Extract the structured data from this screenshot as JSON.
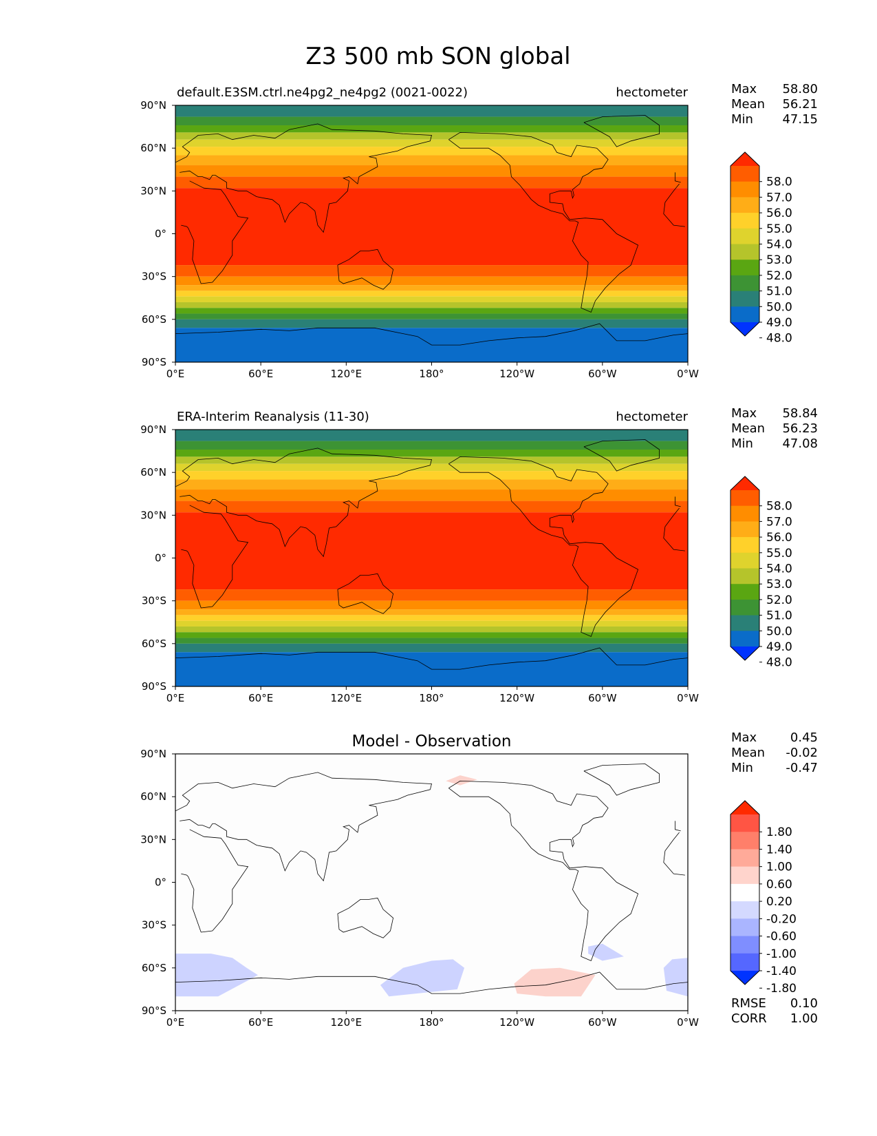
{
  "figure_title": "Z3 500 mb SON global",
  "x_ticks": [
    "0°E",
    "60°E",
    "120°E",
    "180°",
    "120°W",
    "60°W",
    "0°W"
  ],
  "y_ticks": [
    "90°N",
    "60°N",
    "30°N",
    "0°",
    "30°S",
    "60°S",
    "90°S"
  ],
  "panels": [
    {
      "left_title": "default.E3SM.ctrl.ne4pg2_ne4pg2 (0021-0022)",
      "center_title": "",
      "right_title": "hectometer",
      "stats": {
        "max_label": "Max",
        "max": "58.80",
        "mean_label": "Mean",
        "mean": "56.21",
        "min_label": "Min",
        "min": "47.15"
      },
      "colorbar": {
        "labels": [
          "58.0",
          "57.0",
          "56.0",
          "55.0",
          "54.0",
          "53.0",
          "52.0",
          "51.0",
          "50.0",
          "49.0",
          "48.0"
        ],
        "colors": [
          "#ff2a00",
          "#ff5d00",
          "#ff8d00",
          "#ffad17",
          "#ffd12a",
          "#dfd32d",
          "#b5c42b",
          "#5aa612",
          "#3d9334",
          "#2a8077",
          "#0a6cc9",
          "#0033ff"
        ]
      }
    },
    {
      "left_title": "ERA-Interim Reanalysis (11-30)",
      "center_title": "",
      "right_title": "hectometer",
      "stats": {
        "max_label": "Max",
        "max": "58.84",
        "mean_label": "Mean",
        "mean": "56.23",
        "min_label": "Min",
        "min": "47.08"
      },
      "colorbar": {
        "labels": [
          "58.0",
          "57.0",
          "56.0",
          "55.0",
          "54.0",
          "53.0",
          "52.0",
          "51.0",
          "50.0",
          "49.0",
          "48.0"
        ],
        "colors": [
          "#ff2a00",
          "#ff5d00",
          "#ff8d00",
          "#ffad17",
          "#ffd12a",
          "#dfd32d",
          "#b5c42b",
          "#5aa612",
          "#3d9334",
          "#2a8077",
          "#0a6cc9",
          "#0033ff"
        ]
      }
    },
    {
      "left_title": "",
      "center_title": "Model - Observation",
      "right_title": "",
      "stats": {
        "max_label": "Max",
        "max": "0.45",
        "mean_label": "Mean",
        "mean": "-0.02",
        "min_label": "Min",
        "min": "-0.47"
      },
      "colorbar": {
        "labels": [
          "1.80",
          "1.40",
          "1.00",
          "0.60",
          "0.20",
          "-0.20",
          "-0.60",
          "-1.00",
          "-1.40",
          "-1.80"
        ],
        "colors": [
          "#ff2a00",
          "#ff5544",
          "#ff7f6a",
          "#ffaa99",
          "#ffd4cc",
          "#ffffff",
          "#d4d9ff",
          "#aab5ff",
          "#7f8eff",
          "#5567ff",
          "#0033ff"
        ]
      },
      "extra_stats": {
        "rmse_label": "RMSE",
        "rmse": "0.10",
        "corr_label": "CORR",
        "corr": "1.00"
      }
    }
  ],
  "field_bands_latitude": [
    {
      "from": 90,
      "to": 82,
      "value": "49.0"
    },
    {
      "from": 82,
      "to": 76,
      "value": "50.0"
    },
    {
      "from": 76,
      "to": 71,
      "value": "51.0"
    },
    {
      "from": 71,
      "to": 66,
      "value": "52.0"
    },
    {
      "from": 66,
      "to": 61,
      "value": "53.0"
    },
    {
      "from": 61,
      "to": 55,
      "value": "54.0"
    },
    {
      "from": 55,
      "to": 48,
      "value": "55.0"
    },
    {
      "from": 48,
      "to": 40,
      "value": "56.0"
    },
    {
      "from": 40,
      "to": 32,
      "value": "57.0"
    },
    {
      "from": 32,
      "to": -22,
      "value": "58.0"
    },
    {
      "from": -22,
      "to": -30,
      "value": "57.0"
    },
    {
      "from": -30,
      "to": -36,
      "value": "56.0"
    },
    {
      "from": -36,
      "to": -40,
      "value": "55.0"
    },
    {
      "from": -40,
      "to": -44,
      "value": "54.0"
    },
    {
      "from": -44,
      "to": -48,
      "value": "53.0"
    },
    {
      "from": -48,
      "to": -52,
      "value": "52.0"
    },
    {
      "from": -52,
      "to": -56,
      "value": "51.0"
    },
    {
      "from": -56,
      "to": -60,
      "value": "50.0"
    },
    {
      "from": -60,
      "to": -66,
      "value": "49.0"
    },
    {
      "from": -66,
      "to": -90,
      "value": "48.0"
    }
  ]
}
